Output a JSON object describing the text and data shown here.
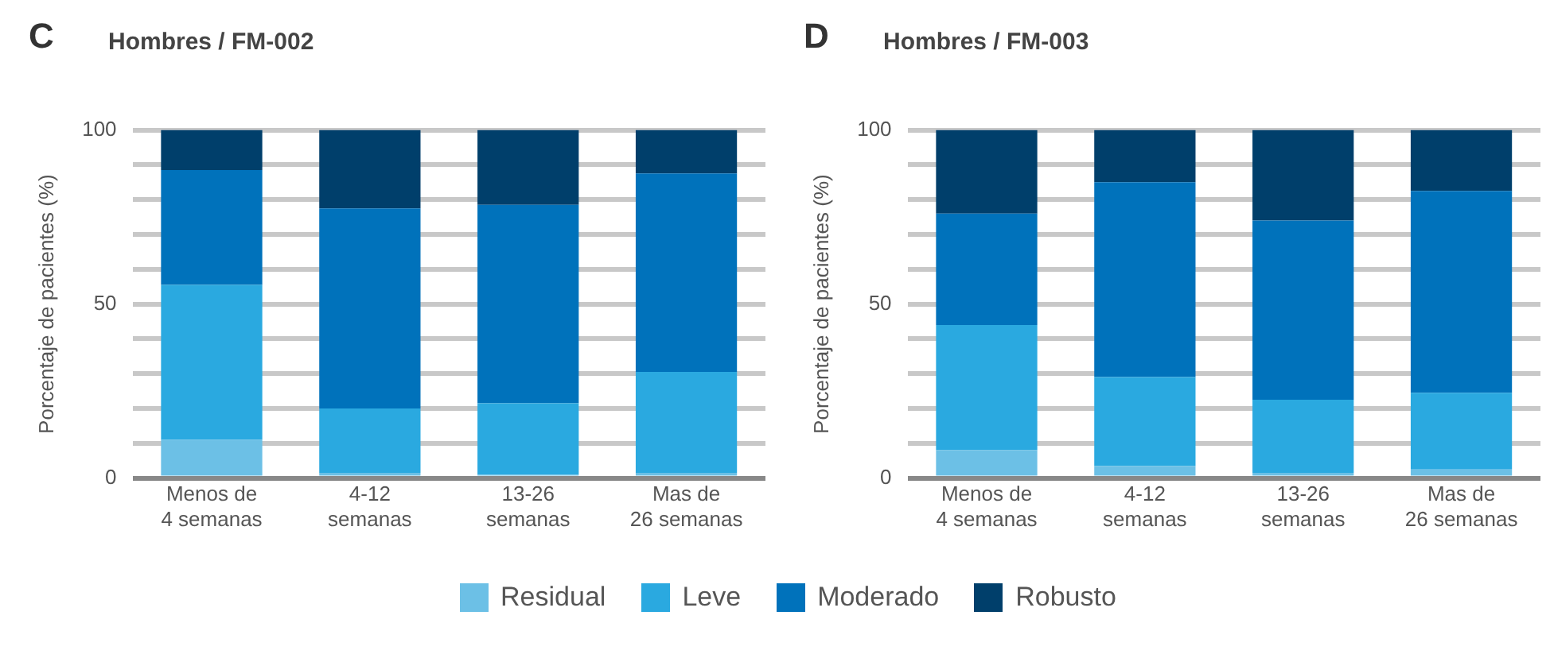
{
  "chart_data": [
    {
      "type": "bar",
      "stacked": true,
      "title": "Hombres / FM-002",
      "annotations": [
        "C"
      ],
      "ylabel": "Porcentaje de pacientes (%)",
      "categories": [
        "Menos de\n4 semanas",
        "4-12\nsemanas",
        "13-26\nsemanas",
        "Mas de\n26 semanas"
      ],
      "ylim": [
        0,
        100
      ],
      "yticks": [
        0,
        {
          "value": 10,
          "label": null
        },
        {
          "value": 20,
          "label": null
        },
        {
          "value": 30,
          "label": null
        },
        {
          "value": 40,
          "label": null
        },
        50,
        {
          "value": 60,
          "label": null
        },
        {
          "value": 70,
          "label": null
        },
        {
          "value": 80,
          "label": null
        },
        {
          "value": 90,
          "label": null
        },
        100
      ],
      "grid": "y",
      "legend": "bottom",
      "series": [
        {
          "name": "Residual",
          "color": "#6cc0e6",
          "values": [
            11,
            1.5,
            1,
            1.5
          ]
        },
        {
          "name": "Leve",
          "color": "#2aa9e0",
          "values": [
            44.5,
            18.5,
            20.5,
            29
          ]
        },
        {
          "name": "Moderado",
          "color": "#0072bb",
          "values": [
            33,
            57.5,
            57,
            57
          ]
        },
        {
          "name": "Robusto",
          "color": "#003f6b",
          "values": [
            11.5,
            22.5,
            21.5,
            12.5
          ]
        }
      ]
    },
    {
      "type": "bar",
      "stacked": true,
      "title": "Hombres / FM-003",
      "annotations": [
        "D"
      ],
      "ylabel": "Porcentaje de pacientes (%)",
      "categories": [
        "Menos de\n4 semanas",
        "4-12\nsemanas",
        "13-26\nsemanas",
        "Mas de\n26 semanas"
      ],
      "ylim": [
        0,
        100
      ],
      "yticks": [
        0,
        {
          "value": 10,
          "label": null
        },
        {
          "value": 20,
          "label": null
        },
        {
          "value": 30,
          "label": null
        },
        {
          "value": 40,
          "label": null
        },
        50,
        {
          "value": 60,
          "label": null
        },
        {
          "value": 70,
          "label": null
        },
        {
          "value": 80,
          "label": null
        },
        {
          "value": 90,
          "label": null
        },
        100
      ],
      "grid": "y",
      "series": [
        {
          "color": "#6cc0e6",
          "values": [
            8,
            3.5,
            1.5,
            2.5
          ]
        },
        {
          "color": "#2aa9e0",
          "values": [
            36,
            25.5,
            21,
            22
          ]
        },
        {
          "color": "#0072bb",
          "values": [
            32,
            56,
            51.5,
            58
          ]
        },
        {
          "color": "#003f6b",
          "values": [
            24,
            15,
            26,
            17.5
          ]
        }
      ]
    }
  ]
}
